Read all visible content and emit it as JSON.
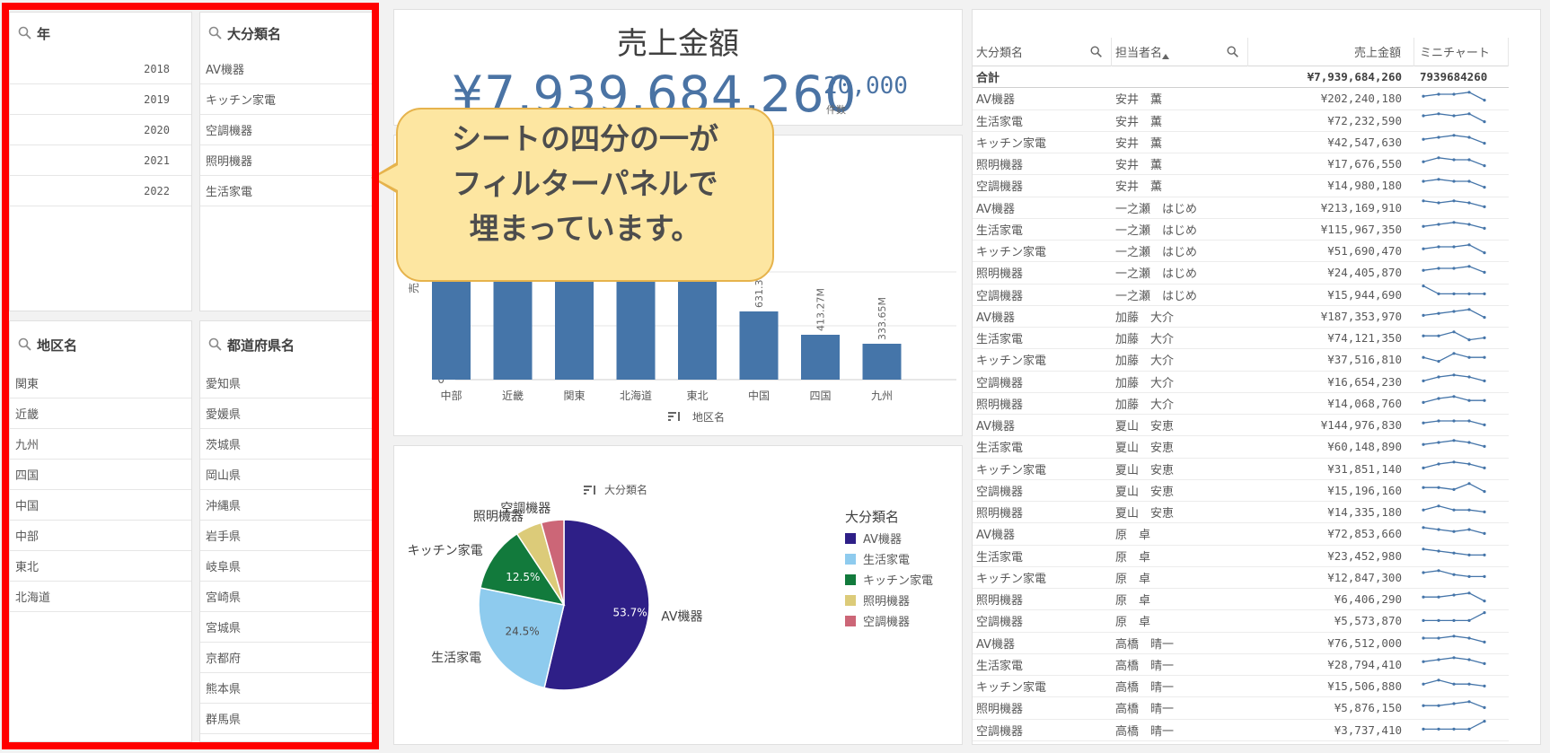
{
  "filters": {
    "year": {
      "title": "年",
      "items": [
        "2018",
        "2019",
        "2020",
        "2021",
        "2022"
      ]
    },
    "category": {
      "title": "大分類名",
      "items": [
        "AV機器",
        "キッチン家電",
        "空調機器",
        "照明機器",
        "生活家電"
      ]
    },
    "region": {
      "title": "地区名",
      "items": [
        "関東",
        "近畿",
        "九州",
        "四国",
        "中国",
        "中部",
        "東北",
        "北海道"
      ]
    },
    "prefecture": {
      "title": "都道府県名",
      "items": [
        "愛知県",
        "愛媛県",
        "茨城県",
        "岡山県",
        "沖縄県",
        "岩手県",
        "岐阜県",
        "宮崎県",
        "宮城県",
        "京都府",
        "熊本県",
        "群馬県"
      ]
    }
  },
  "kpi": {
    "title": "売上金額",
    "value": "¥7,939,684,260",
    "count": "20,000",
    "count_label": "件数"
  },
  "callout": {
    "lines": [
      "シートの四分の一が",
      "フィルターパネルで",
      "埋まっています。"
    ]
  },
  "colors": {
    "accent": "#4a73a4",
    "bar": "#4575a9",
    "highlight": "#ff0000",
    "callout_fill": "#fde6a1"
  },
  "chart_data": [
    {
      "type": "bar",
      "categories": [
        "中部",
        "近畿",
        "関東",
        "北海道",
        "東北",
        "中国",
        "四国",
        "九州"
      ],
      "data_labels": [
        "",
        "",
        "",
        "",
        "",
        "631.38M",
        "413.27M",
        "333.65M"
      ],
      "xlabel": "地区名",
      "ylabel": "売",
      "ytick_labels": [
        "0"
      ],
      "grid": true
    },
    {
      "type": "pie",
      "title": "大分類名",
      "legend_title": "大分類名",
      "legend_position": "right",
      "slices": [
        {
          "name": "AV機器",
          "pct": 53.7,
          "label": "53.7%",
          "color": "#2e1f87"
        },
        {
          "name": "生活家電",
          "pct": 24.5,
          "label": "24.5%",
          "color": "#8ecbee"
        },
        {
          "name": "キッチン家電",
          "pct": 12.5,
          "label": "12.5%",
          "color": "#127a3c"
        },
        {
          "name": "照明機器",
          "pct": 5.0,
          "label": "",
          "color": "#dccb79"
        },
        {
          "name": "空調機器",
          "pct": 4.3,
          "label": "",
          "color": "#cc6677"
        }
      ]
    }
  ],
  "table": {
    "headers": [
      "大分類名",
      "担当者名",
      "売上金額",
      "ミニチャート"
    ],
    "total": [
      "合計",
      "",
      "¥7,939,684,260",
      "7939684260"
    ],
    "rows": [
      {
        "cat": "AV機器",
        "person": "安井　薫",
        "amount": "¥202,240,180",
        "spark": [
          4,
          5,
          5,
          6,
          2
        ]
      },
      {
        "cat": "生活家電",
        "person": "安井　薫",
        "amount": "¥72,232,590",
        "spark": [
          5,
          6,
          5,
          6,
          2
        ]
      },
      {
        "cat": "キッチン家電",
        "person": "安井　薫",
        "amount": "¥42,547,630",
        "spark": [
          4,
          5,
          6,
          5,
          2
        ]
      },
      {
        "cat": "照明機器",
        "person": "安井　薫",
        "amount": "¥17,676,550",
        "spark": [
          4,
          6,
          5,
          5,
          2
        ]
      },
      {
        "cat": "空調機器",
        "person": "安井　薫",
        "amount": "¥14,980,180",
        "spark": [
          5,
          6,
          5,
          5,
          2
        ]
      },
      {
        "cat": "AV機器",
        "person": "一之瀬　はじめ",
        "amount": "¥213,169,910",
        "spark": [
          6,
          5,
          6,
          5,
          3
        ]
      },
      {
        "cat": "生活家電",
        "person": "一之瀬　はじめ",
        "amount": "¥115,967,350",
        "spark": [
          4,
          5,
          6,
          5,
          3
        ]
      },
      {
        "cat": "キッチン家電",
        "person": "一之瀬　はじめ",
        "amount": "¥51,690,470",
        "spark": [
          4,
          5,
          5,
          6,
          2
        ]
      },
      {
        "cat": "照明機器",
        "person": "一之瀬　はじめ",
        "amount": "¥24,405,870",
        "spark": [
          4,
          5,
          5,
          6,
          3
        ]
      },
      {
        "cat": "空調機器",
        "person": "一之瀬　はじめ",
        "amount": "¥15,944,690",
        "spark": [
          7,
          3,
          3,
          3,
          3
        ]
      },
      {
        "cat": "AV機器",
        "person": "加藤　大介",
        "amount": "¥187,353,970",
        "spark": [
          3,
          4,
          5,
          6,
          2
        ]
      },
      {
        "cat": "生活家電",
        "person": "加藤　大介",
        "amount": "¥74,121,350",
        "spark": [
          4,
          4,
          6,
          2,
          3
        ]
      },
      {
        "cat": "キッチン家電",
        "person": "加藤　大介",
        "amount": "¥37,516,810",
        "spark": [
          4,
          2,
          6,
          4,
          4
        ]
      },
      {
        "cat": "空調機器",
        "person": "加藤　大介",
        "amount": "¥16,654,230",
        "spark": [
          3,
          5,
          6,
          5,
          3
        ]
      },
      {
        "cat": "照明機器",
        "person": "加藤　大介",
        "amount": "¥14,068,760",
        "spark": [
          3,
          5,
          6,
          4,
          4
        ]
      },
      {
        "cat": "AV機器",
        "person": "夏山　安恵",
        "amount": "¥144,976,830",
        "spark": [
          4,
          5,
          5,
          5,
          3
        ]
      },
      {
        "cat": "生活家電",
        "person": "夏山　安恵",
        "amount": "¥60,148,890",
        "spark": [
          4,
          5,
          6,
          5,
          3
        ]
      },
      {
        "cat": "キッチン家電",
        "person": "夏山　安恵",
        "amount": "¥31,851,140",
        "spark": [
          3,
          5,
          6,
          5,
          3
        ]
      },
      {
        "cat": "空調機器",
        "person": "夏山　安恵",
        "amount": "¥15,196,160",
        "spark": [
          4,
          4,
          3,
          6,
          2
        ]
      },
      {
        "cat": "照明機器",
        "person": "夏山　安恵",
        "amount": "¥14,335,180",
        "spark": [
          4,
          6,
          4,
          4,
          3
        ]
      },
      {
        "cat": "AV機器",
        "person": "原　卓",
        "amount": "¥72,853,660",
        "spark": [
          6,
          5,
          4,
          5,
          3
        ]
      },
      {
        "cat": "生活家電",
        "person": "原　卓",
        "amount": "¥23,452,980",
        "spark": [
          6,
          5,
          4,
          3,
          3
        ]
      },
      {
        "cat": "キッチン家電",
        "person": "原　卓",
        "amount": "¥12,847,300",
        "spark": [
          5,
          6,
          4,
          3,
          3
        ]
      },
      {
        "cat": "照明機器",
        "person": "原　卓",
        "amount": "¥6,406,290",
        "spark": [
          4,
          4,
          5,
          6,
          2
        ]
      },
      {
        "cat": "空調機器",
        "person": "原　卓",
        "amount": "¥5,573,870",
        "spark": [
          3,
          3,
          3,
          3,
          7
        ]
      },
      {
        "cat": "AV機器",
        "person": "高橋　晴一",
        "amount": "¥76,512,000",
        "spark": [
          5,
          5,
          6,
          5,
          3
        ]
      },
      {
        "cat": "生活家電",
        "person": "高橋　晴一",
        "amount": "¥28,794,410",
        "spark": [
          4,
          5,
          6,
          5,
          3
        ]
      },
      {
        "cat": "キッチン家電",
        "person": "高橋　晴一",
        "amount": "¥15,506,880",
        "spark": [
          4,
          6,
          4,
          4,
          3
        ]
      },
      {
        "cat": "照明機器",
        "person": "高橋　晴一",
        "amount": "¥5,876,150",
        "spark": [
          4,
          4,
          5,
          6,
          3
        ]
      },
      {
        "cat": "空調機器",
        "person": "高橋　晴一",
        "amount": "¥3,737,410",
        "spark": [
          3,
          3,
          3,
          3,
          7
        ]
      }
    ]
  }
}
